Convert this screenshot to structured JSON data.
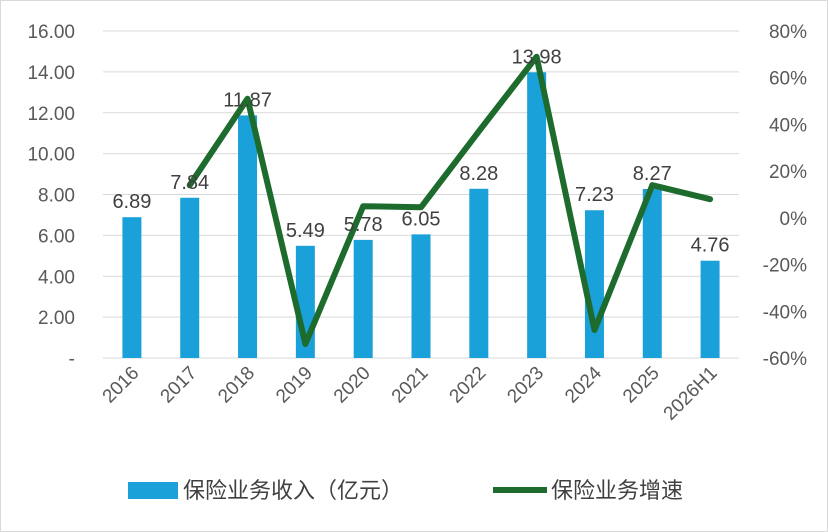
{
  "chart_data": {
    "type": "bar",
    "categories": [
      "2016",
      "2017",
      "2018",
      "2019",
      "2020",
      "2021",
      "2022",
      "2023",
      "2024",
      "2025",
      "2026H1"
    ],
    "series": [
      {
        "name": "保险业务收入（亿元）",
        "type": "bar",
        "axis": "left",
        "color": "#1BA1DA",
        "values": [
          6.89,
          7.84,
          11.87,
          5.49,
          5.78,
          6.05,
          8.28,
          13.98,
          7.23,
          8.27,
          4.76
        ],
        "labels": [
          "6.89",
          "7.84",
          "11.87",
          "5.49",
          "5.78",
          "6.05",
          "8.28",
          "13.98",
          "7.23",
          "8.27",
          "4.76"
        ]
      },
      {
        "name": "保险业务增速",
        "type": "line",
        "axis": "right",
        "color": "#1E6B2E",
        "x": [
          "2017",
          "2018",
          "2019",
          "2020",
          "2021",
          "2022",
          "2023",
          "2024",
          "2025",
          "2026H1"
        ],
        "values": [
          14,
          51,
          -54,
          5,
          4.5,
          37,
          69,
          -48,
          14,
          8
        ]
      }
    ],
    "y_left": {
      "range": [
        0,
        16
      ],
      "ticks": [
        0,
        2,
        4,
        6,
        8,
        10,
        12,
        14,
        16
      ],
      "tick_labels": [
        "-",
        "2.00",
        "4.00",
        "6.00",
        "8.00",
        "10.00",
        "12.00",
        "14.00",
        "16.00"
      ]
    },
    "y_right": {
      "range": [
        -60,
        80
      ],
      "ticks": [
        -60,
        -40,
        -20,
        0,
        20,
        40,
        60,
        80
      ],
      "tick_labels": [
        "-60%",
        "-40%",
        "-20%",
        "0%",
        "20%",
        "40%",
        "60%",
        "80%"
      ]
    },
    "grid": true,
    "legend_position": "bottom",
    "title": "",
    "xlabel": "",
    "ylabel": ""
  }
}
